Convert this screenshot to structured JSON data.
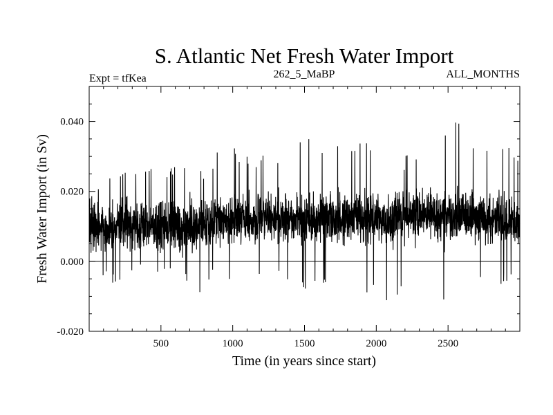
{
  "chart_data": {
    "type": "line",
    "title": "S. Atlantic Net Fresh Water Import",
    "subtitle_left": "Expt = tfKea",
    "subtitle_center": "262_5_MaBP",
    "subtitle_right": "ALL_MONTHS",
    "xlabel": "Time (in years since start)",
    "ylabel": "Fresh Water Import (in Sv)",
    "xlim": [
      0,
      3000
    ],
    "ylim": [
      -0.02,
      0.05
    ],
    "xticks": [
      500,
      1000,
      1500,
      2000,
      2500
    ],
    "xtick_labels": [
      "500",
      "1000",
      "1500",
      "2000",
      "2500"
    ],
    "yticks": [
      -0.02,
      0.0,
      0.02,
      0.04
    ],
    "ytick_labels": [
      "-0.020",
      "0.000",
      "0.020",
      "0.040"
    ],
    "reference_line_y": 0.0,
    "grid": false,
    "legend": "none",
    "series": [
      {
        "line_color": "#000000",
        "x": [
          0,
          100,
          200,
          300,
          400,
          500,
          600,
          700,
          800,
          850,
          900,
          1000,
          1100,
          1200,
          1300,
          1400,
          1500,
          1600,
          1700,
          1800,
          1900,
          2000,
          2100,
          2200,
          2300,
          2400,
          2500,
          2600,
          2700,
          2800,
          2900,
          3000
        ],
        "mean": [
          0.01,
          0.01,
          0.01,
          0.01,
          0.01,
          0.01,
          0.01,
          0.01,
          0.01,
          0.011,
          0.012,
          0.012,
          0.012,
          0.012,
          0.012,
          0.012,
          0.012,
          0.012,
          0.012,
          0.013,
          0.013,
          0.013,
          0.012,
          0.013,
          0.014,
          0.013,
          0.013,
          0.013,
          0.012,
          0.012,
          0.012,
          0.012
        ],
        "max": [
          0.018,
          0.024,
          0.028,
          0.028,
          0.027,
          0.027,
          0.027,
          0.028,
          0.026,
          0.026,
          0.035,
          0.033,
          0.03,
          0.031,
          0.031,
          0.034,
          0.038,
          0.031,
          0.036,
          0.033,
          0.037,
          0.032,
          0.03,
          0.03,
          0.033,
          0.039,
          0.038,
          0.042,
          0.034,
          0.036,
          0.034,
          0.032
        ],
        "min": [
          -0.005,
          -0.005,
          -0.007,
          -0.005,
          -0.004,
          -0.005,
          -0.004,
          -0.007,
          -0.01,
          -0.006,
          -0.002,
          -0.006,
          -0.005,
          -0.004,
          -0.006,
          -0.007,
          -0.009,
          -0.007,
          -0.005,
          -0.006,
          -0.008,
          -0.011,
          -0.012,
          -0.007,
          -0.005,
          -0.009,
          -0.013,
          -0.014,
          -0.009,
          -0.007,
          -0.007,
          -0.005
        ]
      }
    ]
  }
}
